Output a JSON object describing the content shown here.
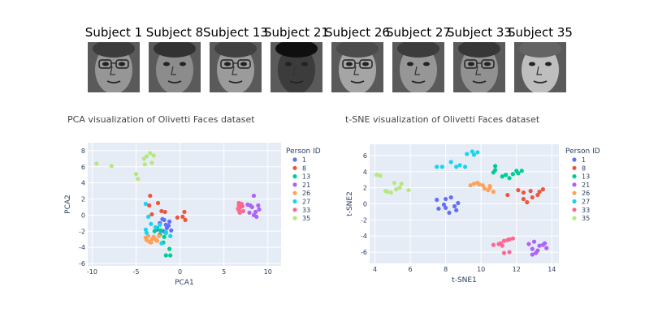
{
  "faces": [
    {
      "label": "Subject 1",
      "icon": "face-photo-icon"
    },
    {
      "label": "Subject 8",
      "icon": "face-photo-icon"
    },
    {
      "label": "Subject 13",
      "icon": "face-photo-icon"
    },
    {
      "label": "Subject 21",
      "icon": "face-photo-icon"
    },
    {
      "label": "Subject 26",
      "icon": "face-photo-icon"
    },
    {
      "label": "Subject 27",
      "icon": "face-photo-icon"
    },
    {
      "label": "Subject 33",
      "icon": "face-photo-icon"
    },
    {
      "label": "Subject 35",
      "icon": "face-photo-icon"
    }
  ],
  "colors": {
    "plot_bg": "#e5ecf6",
    "grid": "#ffffff",
    "series": [
      "#636efa",
      "#ef553b",
      "#00cc96",
      "#ab63fa",
      "#ffa15a",
      "#19d3f3",
      "#ff6692",
      "#b6e880"
    ]
  },
  "chart_data": [
    {
      "type": "scatter",
      "title": "PCA visualization of Olivetti Faces dataset",
      "xlabel": "PCA1",
      "ylabel": "PCA2",
      "xlim": [
        -10.5,
        11.5
      ],
      "ylim": [
        -6.3,
        9
      ],
      "xticks": [
        -10,
        -5,
        0,
        5,
        10
      ],
      "yticks": [
        -6,
        -4,
        -2,
        0,
        2,
        4,
        6,
        8
      ],
      "legend_title": "Person ID",
      "legend_position": "right",
      "series": [
        {
          "name": "1",
          "points": [
            [
              -2,
              -0.5
            ],
            [
              -1.6,
              -1.2
            ],
            [
              -1.9,
              -2
            ],
            [
              -2.3,
              -1
            ],
            [
              -1.2,
              -0.8
            ],
            [
              -1.5,
              -1.6
            ],
            [
              -2.6,
              -1.8
            ],
            [
              -1,
              -1.9
            ],
            [
              -1.8,
              -0.6
            ],
            [
              -1.3,
              -1.3
            ]
          ]
        },
        {
          "name": "8",
          "points": [
            [
              -3.4,
              2.4
            ],
            [
              -2.5,
              1.5
            ],
            [
              -3.5,
              1.2
            ],
            [
              -3.2,
              0.1
            ],
            [
              -2.1,
              0.5
            ],
            [
              -1.7,
              0.4
            ],
            [
              0.6,
              -0.6
            ],
            [
              0.5,
              0.4
            ],
            [
              0.3,
              -0.2
            ],
            [
              -0.3,
              -0.3
            ]
          ]
        },
        {
          "name": "13",
          "points": [
            [
              -1.6,
              -5
            ],
            [
              -1.1,
              -5
            ],
            [
              -1.2,
              -4.2
            ],
            [
              -2.3,
              -2.4
            ],
            [
              -2.2,
              -1.9
            ],
            [
              -2.9,
              -2
            ],
            [
              -1.8,
              -2.7
            ],
            [
              -2.6,
              -1.6
            ],
            [
              -1.6,
              -2.2
            ],
            [
              -1.9,
              -3.4
            ]
          ]
        },
        {
          "name": "21",
          "points": [
            [
              8.4,
              2.4
            ],
            [
              8.9,
              1.2
            ],
            [
              8.2,
              1
            ],
            [
              7.7,
              1.3
            ],
            [
              8.4,
              0
            ],
            [
              9,
              0.7
            ],
            [
              8.7,
              -0.2
            ],
            [
              7.9,
              0.3
            ],
            [
              8,
              1.2
            ],
            [
              8.6,
              0.4
            ]
          ]
        },
        {
          "name": "26",
          "points": [
            [
              -3.6,
              -2.6
            ],
            [
              -3.2,
              -3
            ],
            [
              -3.8,
              -3.1
            ],
            [
              -3.3,
              -3.4
            ],
            [
              -2.6,
              -3.2
            ],
            [
              -3.9,
              -2.8
            ],
            [
              -3,
              -2.7
            ],
            [
              -2.4,
              -2.6
            ],
            [
              -3.5,
              -3.3
            ],
            [
              -2.8,
              -3
            ]
          ]
        },
        {
          "name": "27",
          "points": [
            [
              -3.9,
              1.4
            ],
            [
              -3.6,
              -0.2
            ],
            [
              -3.9,
              -1.8
            ],
            [
              -2.8,
              -1.5
            ],
            [
              -2.1,
              -3.5
            ],
            [
              -1.1,
              -2.6
            ],
            [
              -1.6,
              -2.1
            ],
            [
              -3.3,
              -1.1
            ],
            [
              -2.3,
              -1.2
            ],
            [
              -3.8,
              -2.2
            ]
          ]
        },
        {
          "name": "33",
          "points": [
            [
              6.7,
              0.6
            ],
            [
              6.7,
              1.2
            ],
            [
              6.8,
              0.3
            ],
            [
              6.7,
              1.5
            ],
            [
              7.1,
              1.1
            ],
            [
              6.8,
              0.9
            ],
            [
              7,
              1.4
            ],
            [
              6.6,
              0.8
            ],
            [
              7.2,
              0.5
            ],
            [
              6.9,
              1.3
            ]
          ]
        },
        {
          "name": "35",
          "points": [
            [
              -9.5,
              6.4
            ],
            [
              -7.8,
              6.1
            ],
            [
              -5,
              5.1
            ],
            [
              -4.8,
              4.5
            ],
            [
              -4,
              6.3
            ],
            [
              -3.8,
              7.3
            ],
            [
              -3.4,
              7.7
            ],
            [
              -3,
              7.4
            ],
            [
              -3.2,
              6.5
            ],
            [
              -4.1,
              7
            ]
          ]
        }
      ]
    },
    {
      "type": "scatter",
      "title": "t-SNE visualization of Olivetti Faces dataset",
      "xlabel": "t-SNE1",
      "ylabel": "t-SNE2",
      "xlim": [
        3.7,
        14.4
      ],
      "ylim": [
        -7.4,
        7.4
      ],
      "xticks": [
        4,
        6,
        8,
        10,
        12,
        14
      ],
      "yticks": [
        -6,
        -4,
        -2,
        0,
        2,
        4,
        6
      ],
      "legend_title": "Person ID",
      "legend_position": "right",
      "series": [
        {
          "name": "1",
          "points": [
            [
              7.5,
              0.5
            ],
            [
              8,
              0.6
            ],
            [
              8.3,
              0.8
            ],
            [
              8.7,
              0.1
            ],
            [
              7.6,
              -0.6
            ],
            [
              8,
              -0.5
            ],
            [
              8.5,
              -0.3
            ],
            [
              8.2,
              -1.1
            ],
            [
              8.6,
              -0.8
            ],
            [
              7.9,
              -0.1
            ]
          ]
        },
        {
          "name": "8",
          "points": [
            [
              11.5,
              1.1
            ],
            [
              12.1,
              1.7
            ],
            [
              12.4,
              1.4
            ],
            [
              12.8,
              1.6
            ],
            [
              13.2,
              1.1
            ],
            [
              13.5,
              1.8
            ],
            [
              12.4,
              0.6
            ],
            [
              13.3,
              1.5
            ],
            [
              12.6,
              0.2
            ],
            [
              12.9,
              0.8
            ]
          ]
        },
        {
          "name": "13",
          "points": [
            [
              10.8,
              4.2
            ],
            [
              10.8,
              4.7
            ],
            [
              11.2,
              3.4
            ],
            [
              11.6,
              3.2
            ],
            [
              11.8,
              3.7
            ],
            [
              12,
              4.1
            ],
            [
              12.3,
              4.1
            ],
            [
              12.1,
              3.8
            ],
            [
              10.7,
              3.9
            ],
            [
              11.4,
              3.6
            ]
          ]
        },
        {
          "name": "21",
          "points": [
            [
              12.7,
              -5
            ],
            [
              12.9,
              -5.6
            ],
            [
              13.2,
              -5.8
            ],
            [
              13.5,
              -5.1
            ],
            [
              13.7,
              -5.5
            ],
            [
              13.3,
              -5.2
            ],
            [
              12.9,
              -6.3
            ],
            [
              13.1,
              -6.1
            ],
            [
              13,
              -4.7
            ],
            [
              13.6,
              -4.9
            ]
          ]
        },
        {
          "name": "26",
          "points": [
            [
              9.4,
              2.3
            ],
            [
              9.8,
              2.6
            ],
            [
              10.1,
              2.3
            ],
            [
              10.2,
              1.9
            ],
            [
              10.5,
              2
            ],
            [
              10.7,
              1.5
            ],
            [
              10.4,
              1.7
            ],
            [
              9.9,
              2.4
            ],
            [
              10.5,
              2.2
            ],
            [
              9.6,
              2.5
            ]
          ]
        },
        {
          "name": "27",
          "points": [
            [
              7.5,
              4.6
            ],
            [
              7.8,
              4.6
            ],
            [
              8.6,
              4.6
            ],
            [
              9.1,
              4.6
            ],
            [
              9.2,
              6.2
            ],
            [
              9.5,
              6.5
            ],
            [
              9.8,
              6.4
            ],
            [
              8.3,
              5.2
            ],
            [
              9.6,
              6.1
            ],
            [
              8.8,
              4.8
            ]
          ]
        },
        {
          "name": "33",
          "points": [
            [
              10.7,
              -5.1
            ],
            [
              11,
              -5
            ],
            [
              11.2,
              -5.2
            ],
            [
              11.3,
              -4.6
            ],
            [
              11.6,
              -4.4
            ],
            [
              11.8,
              -4.3
            ],
            [
              11.3,
              -6.1
            ],
            [
              11.6,
              -6
            ],
            [
              11.1,
              -4.9
            ],
            [
              11.5,
              -4.5
            ]
          ]
        },
        {
          "name": "35",
          "points": [
            [
              4.1,
              3.6
            ],
            [
              4.3,
              3.5
            ],
            [
              4.7,
              1.5
            ],
            [
              4.9,
              1.4
            ],
            [
              5.1,
              2.6
            ],
            [
              5.5,
              2.5
            ],
            [
              5.4,
              2
            ],
            [
              5.9,
              1.7
            ],
            [
              5.2,
              1.8
            ],
            [
              4.6,
              1.6
            ]
          ]
        }
      ]
    }
  ]
}
